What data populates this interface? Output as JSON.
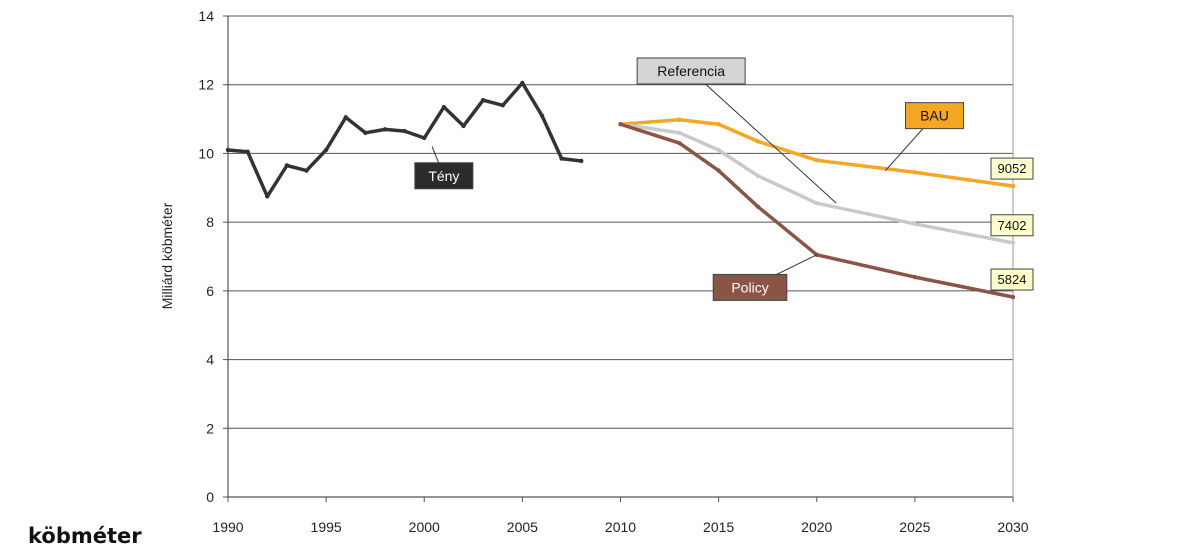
{
  "footer_text": "köbméter",
  "chart_data": {
    "type": "line",
    "ylabel": "Milliárd köbméter",
    "xlabel": "",
    "title": "",
    "xlim": [
      1990,
      2030
    ],
    "ylim": [
      0,
      14
    ],
    "x_ticks": [
      1990,
      1995,
      2000,
      2005,
      2010,
      2015,
      2020,
      2025,
      2030
    ],
    "y_ticks": [
      0,
      2,
      4,
      6,
      8,
      10,
      12,
      14
    ],
    "grid": "horizontal",
    "series": [
      {
        "name": "Tény",
        "color": "#333333",
        "label_bg": "#2b2b2b",
        "label_fg": "#ffffff",
        "label_at": [
          2001.0,
          9.35
        ],
        "leader_to": [
          2000.4,
          10.2
        ],
        "points": [
          [
            1990,
            10.1
          ],
          [
            1991,
            10.05
          ],
          [
            1992,
            8.75
          ],
          [
            1993,
            9.65
          ],
          [
            1994,
            9.5
          ],
          [
            1995,
            10.1
          ],
          [
            1996,
            11.05
          ],
          [
            1997,
            10.6
          ],
          [
            1998,
            10.7
          ],
          [
            1999,
            10.65
          ],
          [
            2000,
            10.45
          ],
          [
            2001,
            11.35
          ],
          [
            2002,
            10.8
          ],
          [
            2003,
            11.55
          ],
          [
            2004,
            11.4
          ],
          [
            2005,
            12.05
          ],
          [
            2006,
            11.1
          ],
          [
            2007,
            9.85
          ],
          [
            2008,
            9.78
          ]
        ]
      },
      {
        "name": "BAU",
        "color": "#f5a623",
        "label_bg": "#f5a623",
        "label_fg": "#111111",
        "label_at": [
          2026.0,
          11.1
        ],
        "leader_to": [
          2023.5,
          9.5
        ],
        "end_label": "9052",
        "points": [
          [
            2010,
            10.85
          ],
          [
            2013,
            10.98
          ],
          [
            2015,
            10.85
          ],
          [
            2017,
            10.35
          ],
          [
            2020,
            9.8
          ],
          [
            2025,
            9.45
          ],
          [
            2030,
            9.05
          ]
        ]
      },
      {
        "name": "Referencia",
        "color": "#c9c9c9",
        "label_bg": "#d4d4d4",
        "label_fg": "#111111",
        "label_at": [
          2013.6,
          12.4
        ],
        "leader_to": [
          2021.0,
          8.55
        ],
        "end_label": "7402",
        "points": [
          [
            2010,
            10.85
          ],
          [
            2013,
            10.6
          ],
          [
            2015,
            10.1
          ],
          [
            2017,
            9.35
          ],
          [
            2020,
            8.55
          ],
          [
            2025,
            7.95
          ],
          [
            2030,
            7.4
          ]
        ]
      },
      {
        "name": "Policy",
        "color": "#8b5446",
        "label_bg": "#8b5446",
        "label_fg": "#ffffff",
        "label_at": [
          2016.6,
          6.1
        ],
        "leader_to": [
          2020.0,
          7.05
        ],
        "end_label": "5824",
        "points": [
          [
            2010,
            10.85
          ],
          [
            2013,
            10.3
          ],
          [
            2015,
            9.5
          ],
          [
            2017,
            8.45
          ],
          [
            2020,
            7.05
          ],
          [
            2025,
            6.4
          ],
          [
            2030,
            5.82
          ]
        ]
      }
    ]
  }
}
